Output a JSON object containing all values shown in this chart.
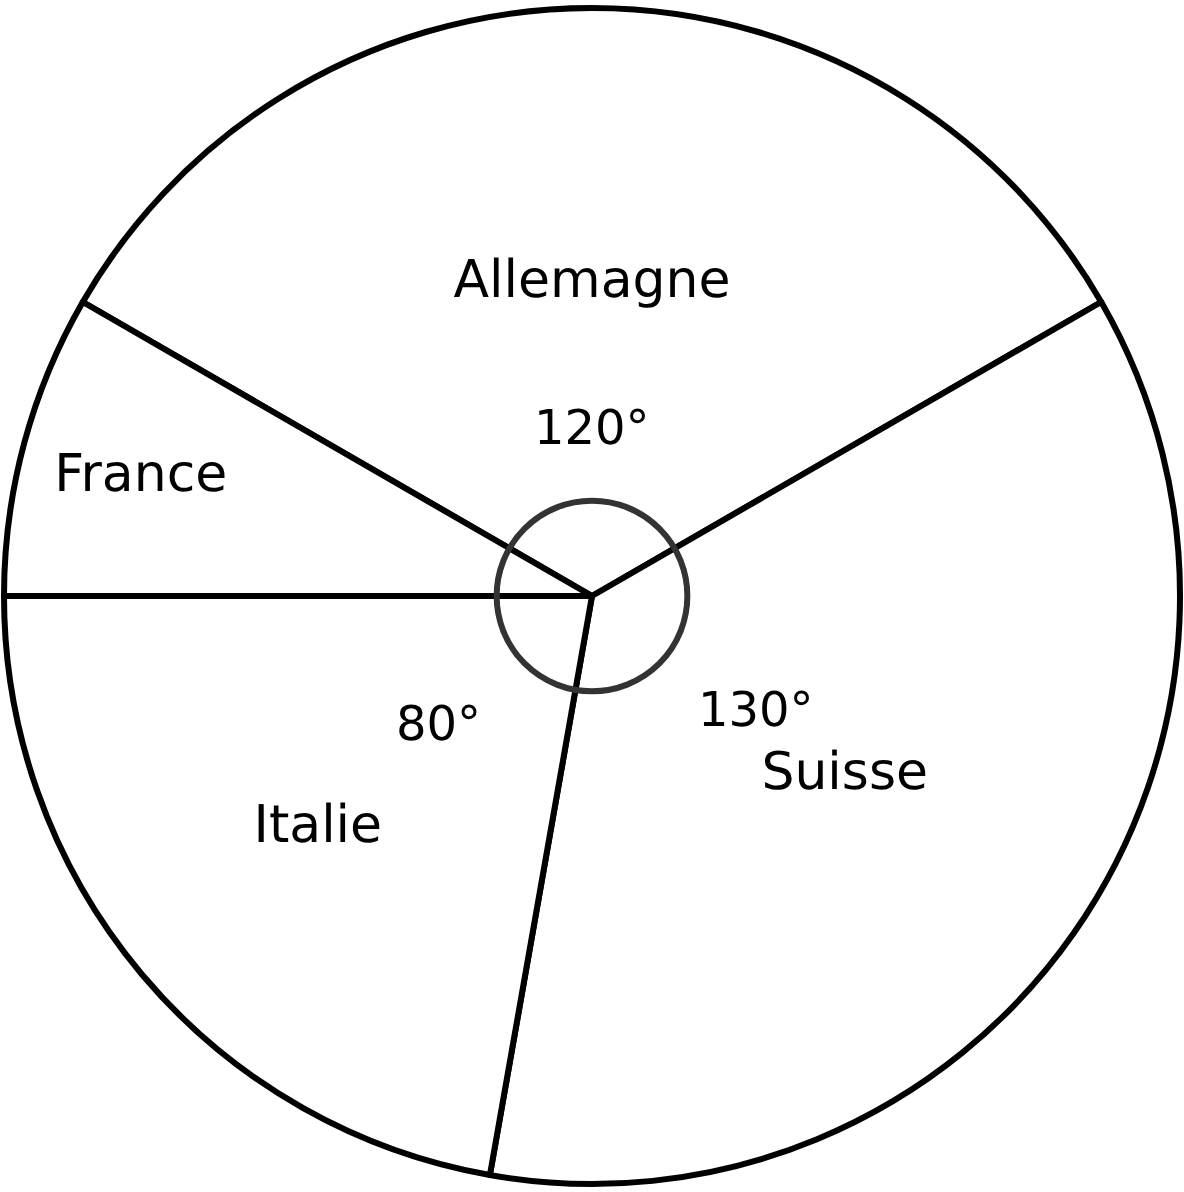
{
  "chart_data": {
    "type": "pie",
    "categories": [
      "Allemagne",
      "Suisse",
      "Italie",
      "France"
    ],
    "values": [
      120,
      130,
      80,
      30
    ],
    "colors": [
      "#ffffff",
      "#ffffff",
      "#ffffff",
      "#ffffff"
    ],
    "value_labels": [
      "120°",
      "130°",
      "80°",
      null
    ],
    "legend": false
  }
}
